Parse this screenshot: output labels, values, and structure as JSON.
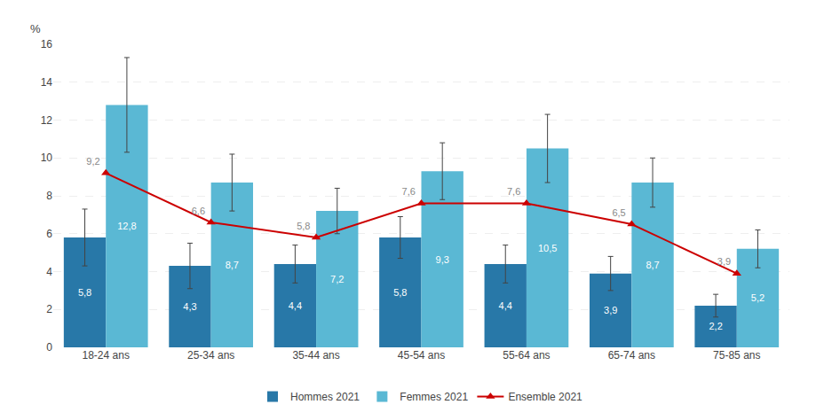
{
  "chart_data": {
    "type": "bar",
    "ylabel": "%",
    "categories": [
      "18-24 ans",
      "25-34 ans",
      "35-44 ans",
      "45-54 ans",
      "55-64 ans",
      "65-74 ans",
      "75-85 ans"
    ],
    "series": [
      {
        "name": "Hommes 2021",
        "type": "bar",
        "color": "#2878a8",
        "values": [
          5.8,
          4.3,
          4.4,
          5.8,
          4.4,
          3.9,
          2.2
        ],
        "value_labels": [
          "5,8",
          "4,3",
          "4,4",
          "5,8",
          "4,4",
          "3,9",
          "2,2"
        ],
        "errors": [
          1.5,
          1.2,
          1.0,
          1.1,
          1.0,
          0.9,
          0.6
        ]
      },
      {
        "name": "Femmes 2021",
        "type": "bar",
        "color": "#5ab8d4",
        "values": [
          12.8,
          8.7,
          7.2,
          9.3,
          10.5,
          8.7,
          5.2
        ],
        "value_labels": [
          "12,8",
          "8,7",
          "7,2",
          "9,3",
          "10,5",
          "8,7",
          "5,2"
        ],
        "errors": [
          2.5,
          1.5,
          1.2,
          1.5,
          1.8,
          1.3,
          1.0
        ]
      },
      {
        "name": "Ensemble 2021",
        "type": "line",
        "color": "#cc0000",
        "marker": "triangle",
        "line_style": "solid",
        "values": [
          9.2,
          6.6,
          5.8,
          7.6,
          7.6,
          6.5,
          3.9
        ],
        "value_labels": [
          "9,2",
          "6,6",
          "5,8",
          "7,6",
          "7,6",
          "6,5",
          "3,9"
        ]
      }
    ],
    "ylim": [
      0,
      16
    ],
    "yticks": [
      0,
      2,
      4,
      6,
      8,
      10,
      12,
      14,
      16
    ],
    "grid": true,
    "legend": "bottom",
    "data_labels": true
  }
}
